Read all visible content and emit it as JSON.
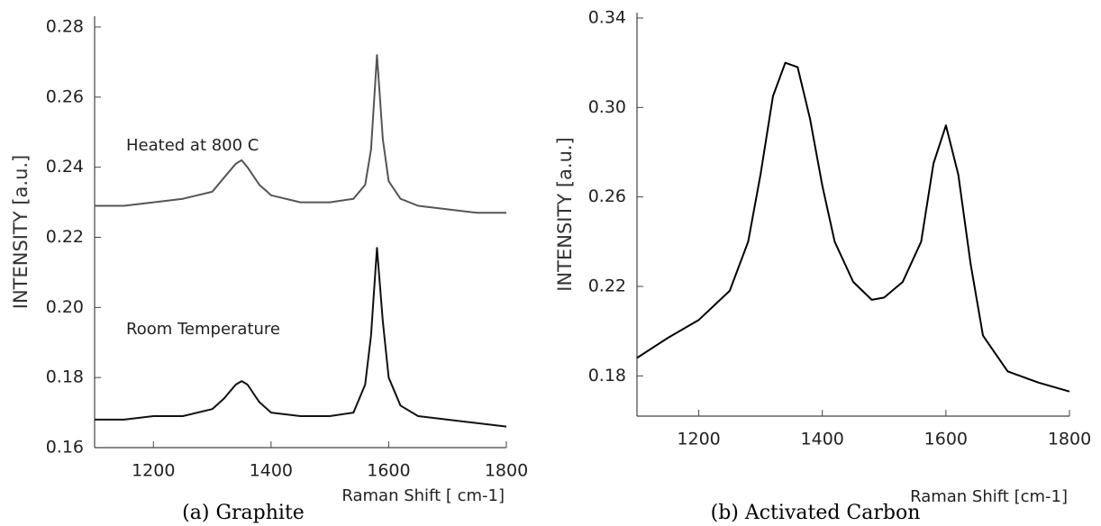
{
  "chart_data": [
    {
      "type": "line",
      "caption": "(a) Graphite",
      "x_label": "Raman Shift [ cm-1]",
      "y_label": "INTENSITY [a.u.]",
      "xlim": [
        1100,
        1800
      ],
      "xticks": [
        1200,
        1400,
        1600,
        1800
      ],
      "ylim": [
        0.16,
        0.28
      ],
      "yticks": [
        0.16,
        0.18,
        {
          "value": 0.2,
          "label": "0.20"
        },
        0.22,
        0.24,
        0.26,
        0.28
      ],
      "x": [
        1100,
        1150,
        1200,
        1250,
        1300,
        1320,
        1340,
        1350,
        1360,
        1380,
        1400,
        1450,
        1500,
        1540,
        1560,
        1570,
        1580,
        1590,
        1600,
        1620,
        1650,
        1700,
        1750,
        1800
      ],
      "series": [
        {
          "name": "Heated at 800 C",
          "color": "#555555",
          "values": [
            0.229,
            0.229,
            0.23,
            0.231,
            0.233,
            0.237,
            0.241,
            0.242,
            0.24,
            0.235,
            0.232,
            0.23,
            0.23,
            0.231,
            0.235,
            0.245,
            0.272,
            0.248,
            0.236,
            0.231,
            0.229,
            0.228,
            0.227,
            0.227
          ]
        },
        {
          "name": "Room Temperature",
          "color": "#111111",
          "values": [
            0.168,
            0.168,
            0.169,
            0.169,
            0.171,
            0.174,
            0.178,
            0.179,
            0.178,
            0.173,
            0.17,
            0.169,
            0.169,
            0.17,
            0.178,
            0.192,
            0.217,
            0.196,
            0.18,
            0.172,
            0.169,
            0.168,
            0.167,
            0.166
          ]
        }
      ]
    },
    {
      "type": "line",
      "caption": "(b) Activated Carbon",
      "x_label": "Raman Shift [cm-1]",
      "y_label": "INTENSITY [a.u.]",
      "xlim": [
        1100,
        1800
      ],
      "xticks": [
        1200,
        1400,
        1600,
        1800
      ],
      "ylim": [
        0.162,
        0.34
      ],
      "yticks": [
        0.18,
        0.22,
        0.26,
        {
          "value": 0.3,
          "label": "0.30"
        },
        0.34
      ],
      "x": [
        1100,
        1150,
        1200,
        1250,
        1280,
        1300,
        1320,
        1340,
        1360,
        1380,
        1400,
        1420,
        1450,
        1480,
        1500,
        1530,
        1560,
        1580,
        1600,
        1620,
        1640,
        1660,
        1700,
        1750,
        1800
      ],
      "series": [
        {
          "name": "Activated Carbon",
          "color": "#000000",
          "values": [
            0.188,
            0.197,
            0.205,
            0.218,
            0.24,
            0.27,
            0.305,
            0.32,
            0.318,
            0.295,
            0.265,
            0.24,
            0.222,
            0.214,
            0.215,
            0.222,
            0.24,
            0.275,
            0.292,
            0.27,
            0.23,
            0.198,
            0.182,
            0.177,
            0.173
          ]
        }
      ]
    }
  ]
}
